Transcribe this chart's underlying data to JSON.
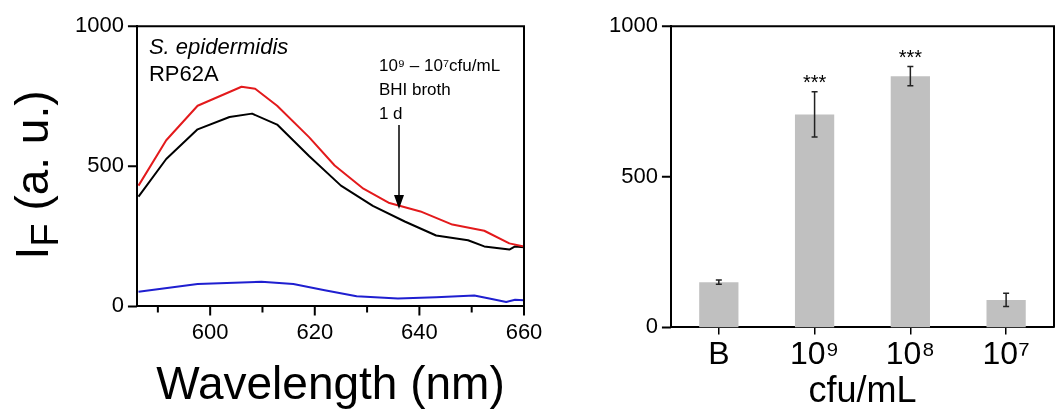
{
  "chart_data": [
    {
      "type": "line",
      "xlabel": "Wavelength (nm)",
      "ylabel": "I$_{F}$ (a. u.)",
      "xlim": [
        586,
        660
      ],
      "ylim": [
        0,
        1000
      ],
      "xticks": [
        {
          "value": 590,
          "label": null
        },
        600,
        {
          "value": 610,
          "label": null
        },
        620,
        {
          "value": 630,
          "label": null
        },
        640,
        {
          "value": 650,
          "label": null
        },
        660
      ],
      "yticks": [
        0,
        500,
        1000
      ],
      "annotations": [
        "S. epidermidis",
        "RP62A",
        "10⁹ – 10⁷cfu/mL",
        "BHI broth",
        "1 d"
      ],
      "series": [
        {
          "color": "#e31a1c",
          "x": [
            586.3,
            591.6,
            597.6,
            606.0,
            608.6,
            612.8,
            618.9,
            623.8,
            629.3,
            634.1,
            640.2,
            646.3,
            652.4,
            657.2,
            660
          ],
          "values": [
            431,
            593,
            716,
            784,
            777,
            716,
            604,
            503,
            420,
            370,
            339,
            292,
            270,
            225,
            214
          ]
        },
        {
          "color": "#000000",
          "x": [
            586.3,
            591.6,
            597.6,
            603.7,
            608.0,
            612.8,
            618.9,
            625.0,
            631.1,
            637.2,
            643.2,
            649.3,
            652.4,
            657.2,
            658.3,
            660
          ],
          "values": [
            392,
            526,
            632,
            676,
            688,
            649,
            537,
            431,
            359,
            303,
            253,
            236,
            214,
            203,
            214,
            211
          ]
        },
        {
          "color": "#1f1fd0",
          "x": [
            586.3,
            597.6,
            609.8,
            615.9,
            621.9,
            628.0,
            635.9,
            643.2,
            650.5,
            653.6,
            656.6,
            658.3,
            660
          ],
          "values": [
            52,
            80,
            88,
            80,
            58,
            36,
            28,
            33,
            39,
            27,
            16,
            24,
            22
          ]
        }
      ]
    },
    {
      "type": "bar",
      "xlabel": "cfu/mL",
      "categories": [
        "B",
        "10⁹",
        "10⁸",
        "10⁷"
      ],
      "values": [
        150,
        707,
        834,
        91
      ],
      "errors": [
        7,
        75,
        32,
        22
      ],
      "color": "#c0c0c0",
      "ylim": [
        0,
        1000
      ],
      "yticks": [
        0,
        500,
        1000
      ],
      "annotations": [
        {
          "text": "***",
          "x": "10⁹",
          "y": 790
        },
        {
          "text": "***",
          "x": "10⁸",
          "y": 875
        }
      ]
    }
  ]
}
